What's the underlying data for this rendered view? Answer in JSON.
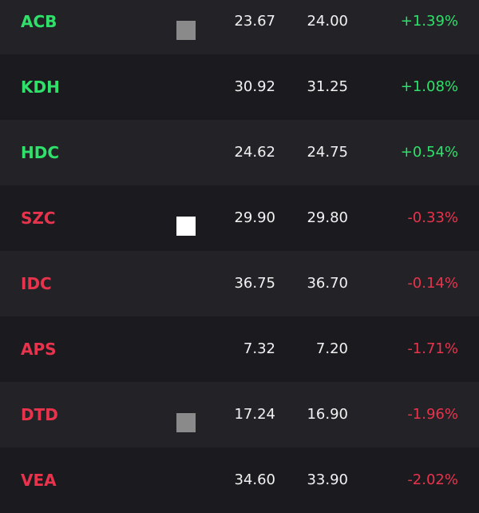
{
  "table": {
    "rows": [
      {
        "ticker": "ACB",
        "price": "23.67",
        "ref": "24.00",
        "change": "+1.39%",
        "color": "#2fe06a"
      },
      {
        "ticker": "KDH",
        "price": "30.92",
        "ref": "31.25",
        "change": "+1.08%",
        "color": "#2fe06a"
      },
      {
        "ticker": "HDC",
        "price": "24.62",
        "ref": "24.75",
        "change": "+0.54%",
        "color": "#2fe06a"
      },
      {
        "ticker": "SZC",
        "price": "29.90",
        "ref": "29.80",
        "change": "-0.33%",
        "color": "#e8334d"
      },
      {
        "ticker": "IDC",
        "price": "36.75",
        "ref": "36.70",
        "change": "-0.14%",
        "color": "#e8334d"
      },
      {
        "ticker": "APS",
        "price": "7.32",
        "ref": "7.20",
        "change": "-1.71%",
        "color": "#e8334d"
      },
      {
        "ticker": "DTD",
        "price": "17.24",
        "ref": "16.90",
        "change": "-1.96%",
        "color": "#e8334d"
      },
      {
        "ticker": "VEA",
        "price": "34.60",
        "ref": "33.90",
        "change": "-2.02%",
        "color": "#e8334d"
      }
    ]
  }
}
